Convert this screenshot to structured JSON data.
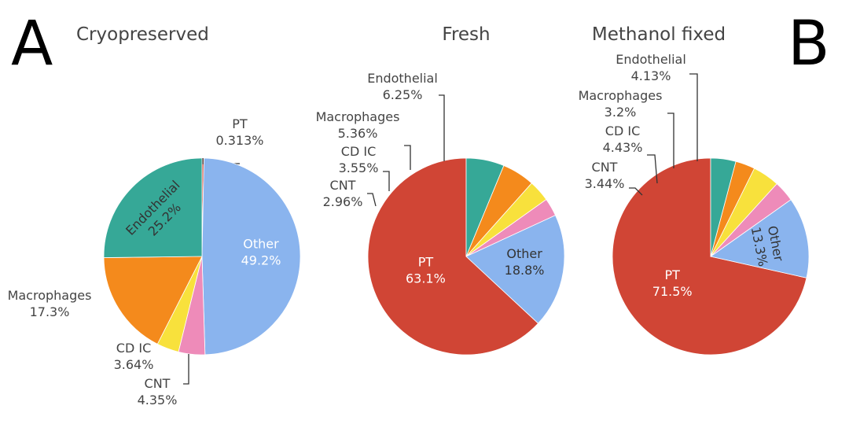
{
  "panel_letters": [
    "A",
    "B"
  ],
  "chart_data": [
    {
      "type": "pie",
      "title": "Cryopreserved",
      "slices": [
        {
          "label": "PT",
          "value": 0.313,
          "text": "0.313%",
          "color": "#d04535"
        },
        {
          "label": "Other",
          "value": 49.2,
          "text": "49.2%",
          "color": "#8ab4ee"
        },
        {
          "label": "CNT",
          "value": 4.35,
          "text": "4.35%",
          "color": "#ee8bb9"
        },
        {
          "label": "CD IC",
          "value": 3.64,
          "text": "3.64%",
          "color": "#f8e13c"
        },
        {
          "label": "Macrophages",
          "value": 17.3,
          "text": "17.3%",
          "color": "#f48a1c"
        },
        {
          "label": "Endothelial",
          "value": 25.2,
          "text": "25.2%",
          "color": "#36a897"
        }
      ]
    },
    {
      "type": "pie",
      "title": "Fresh",
      "slices": [
        {
          "label": "PT",
          "value": 63.1,
          "text": "63.1%",
          "color": "#d04535"
        },
        {
          "label": "Other",
          "value": 18.8,
          "text": "18.8%",
          "color": "#8ab4ee"
        },
        {
          "label": "CNT",
          "value": 2.96,
          "text": "2.96%",
          "color": "#ee8bb9"
        },
        {
          "label": "CD IC",
          "value": 3.55,
          "text": "3.55%",
          "color": "#f8e13c"
        },
        {
          "label": "Macrophages",
          "value": 5.36,
          "text": "5.36%",
          "color": "#f48a1c"
        },
        {
          "label": "Endothelial",
          "value": 6.25,
          "text": "6.25%",
          "color": "#36a897"
        }
      ]
    },
    {
      "type": "pie",
      "title": "Methanol fixed",
      "slices": [
        {
          "label": "PT",
          "value": 71.5,
          "text": "71.5%",
          "color": "#d04535"
        },
        {
          "label": "Other",
          "value": 13.3,
          "text": "13.3%",
          "color": "#8ab4ee"
        },
        {
          "label": "CNT",
          "value": 3.44,
          "text": "3.44%",
          "color": "#ee8bb9"
        },
        {
          "label": "CD IC",
          "value": 4.43,
          "text": "4.43%",
          "color": "#f8e13c"
        },
        {
          "label": "Macrophages",
          "value": 3.2,
          "text": "3.2%",
          "color": "#f48a1c"
        },
        {
          "label": "Endothelial",
          "value": 4.13,
          "text": "4.13%",
          "color": "#36a897"
        }
      ]
    }
  ]
}
